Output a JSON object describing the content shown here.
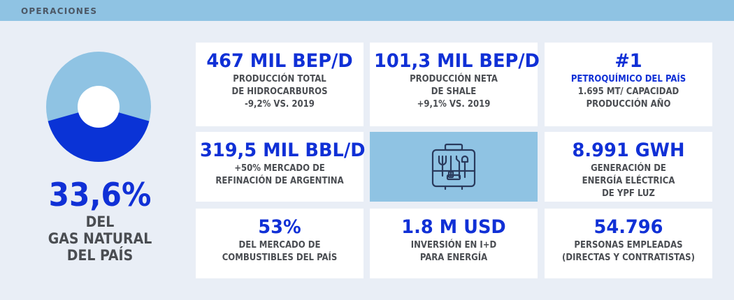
{
  "header": {
    "label": "OPERACIONES"
  },
  "donut": {
    "percent": 33.6,
    "colors": {
      "main": "#8fc3e3",
      "highlight": "#0a33d6",
      "hole": "#ffffff"
    }
  },
  "gas_stat": {
    "value": "33,6%",
    "description": "DEL\nGAS NATURAL\nDEL PAÍS"
  },
  "cards": {
    "production_total": {
      "value": "467 MIL BEP/D",
      "description": "PRODUCCIÓN TOTAL\nDE HIDROCARBUROS\n-9,2% VS. 2019"
    },
    "shale": {
      "value": "101,3 MIL BEP/D",
      "description": "PRODUCCIÓN NETA\nDE SHALE\n+9,1% VS. 2019"
    },
    "petrochem": {
      "value": "#1",
      "highlight": "PETROQUÍMICO DEL PAÍS",
      "description": "1.695 MT/ CAPACIDAD\nPRODUCCIÓN AÑO"
    },
    "refining": {
      "value": "319,5 MIL BBL/D",
      "description": "+50% MERCADO DE\nREFINACIÓN DE ARGENTINA"
    },
    "toolbox": {
      "icon": "toolbox-icon"
    },
    "power": {
      "value": "8.991 GWH",
      "description": "GENERACIÓN DE\nENERGÍA ELÉCTRICA\nDE YPF LUZ"
    },
    "fuel_market": {
      "value": "53%",
      "description": "DEL MERCADO DE\nCOMBUSTIBLES DEL PAÍS"
    },
    "rd": {
      "value": "1.8 M USD",
      "description": "INVERSIÓN EN I+D\nPARA ENERGÍA"
    },
    "employees": {
      "value": "54.796",
      "description": "PERSONAS EMPLEADAS\n(DIRECTAS Y CONTRATISTAS)"
    }
  }
}
